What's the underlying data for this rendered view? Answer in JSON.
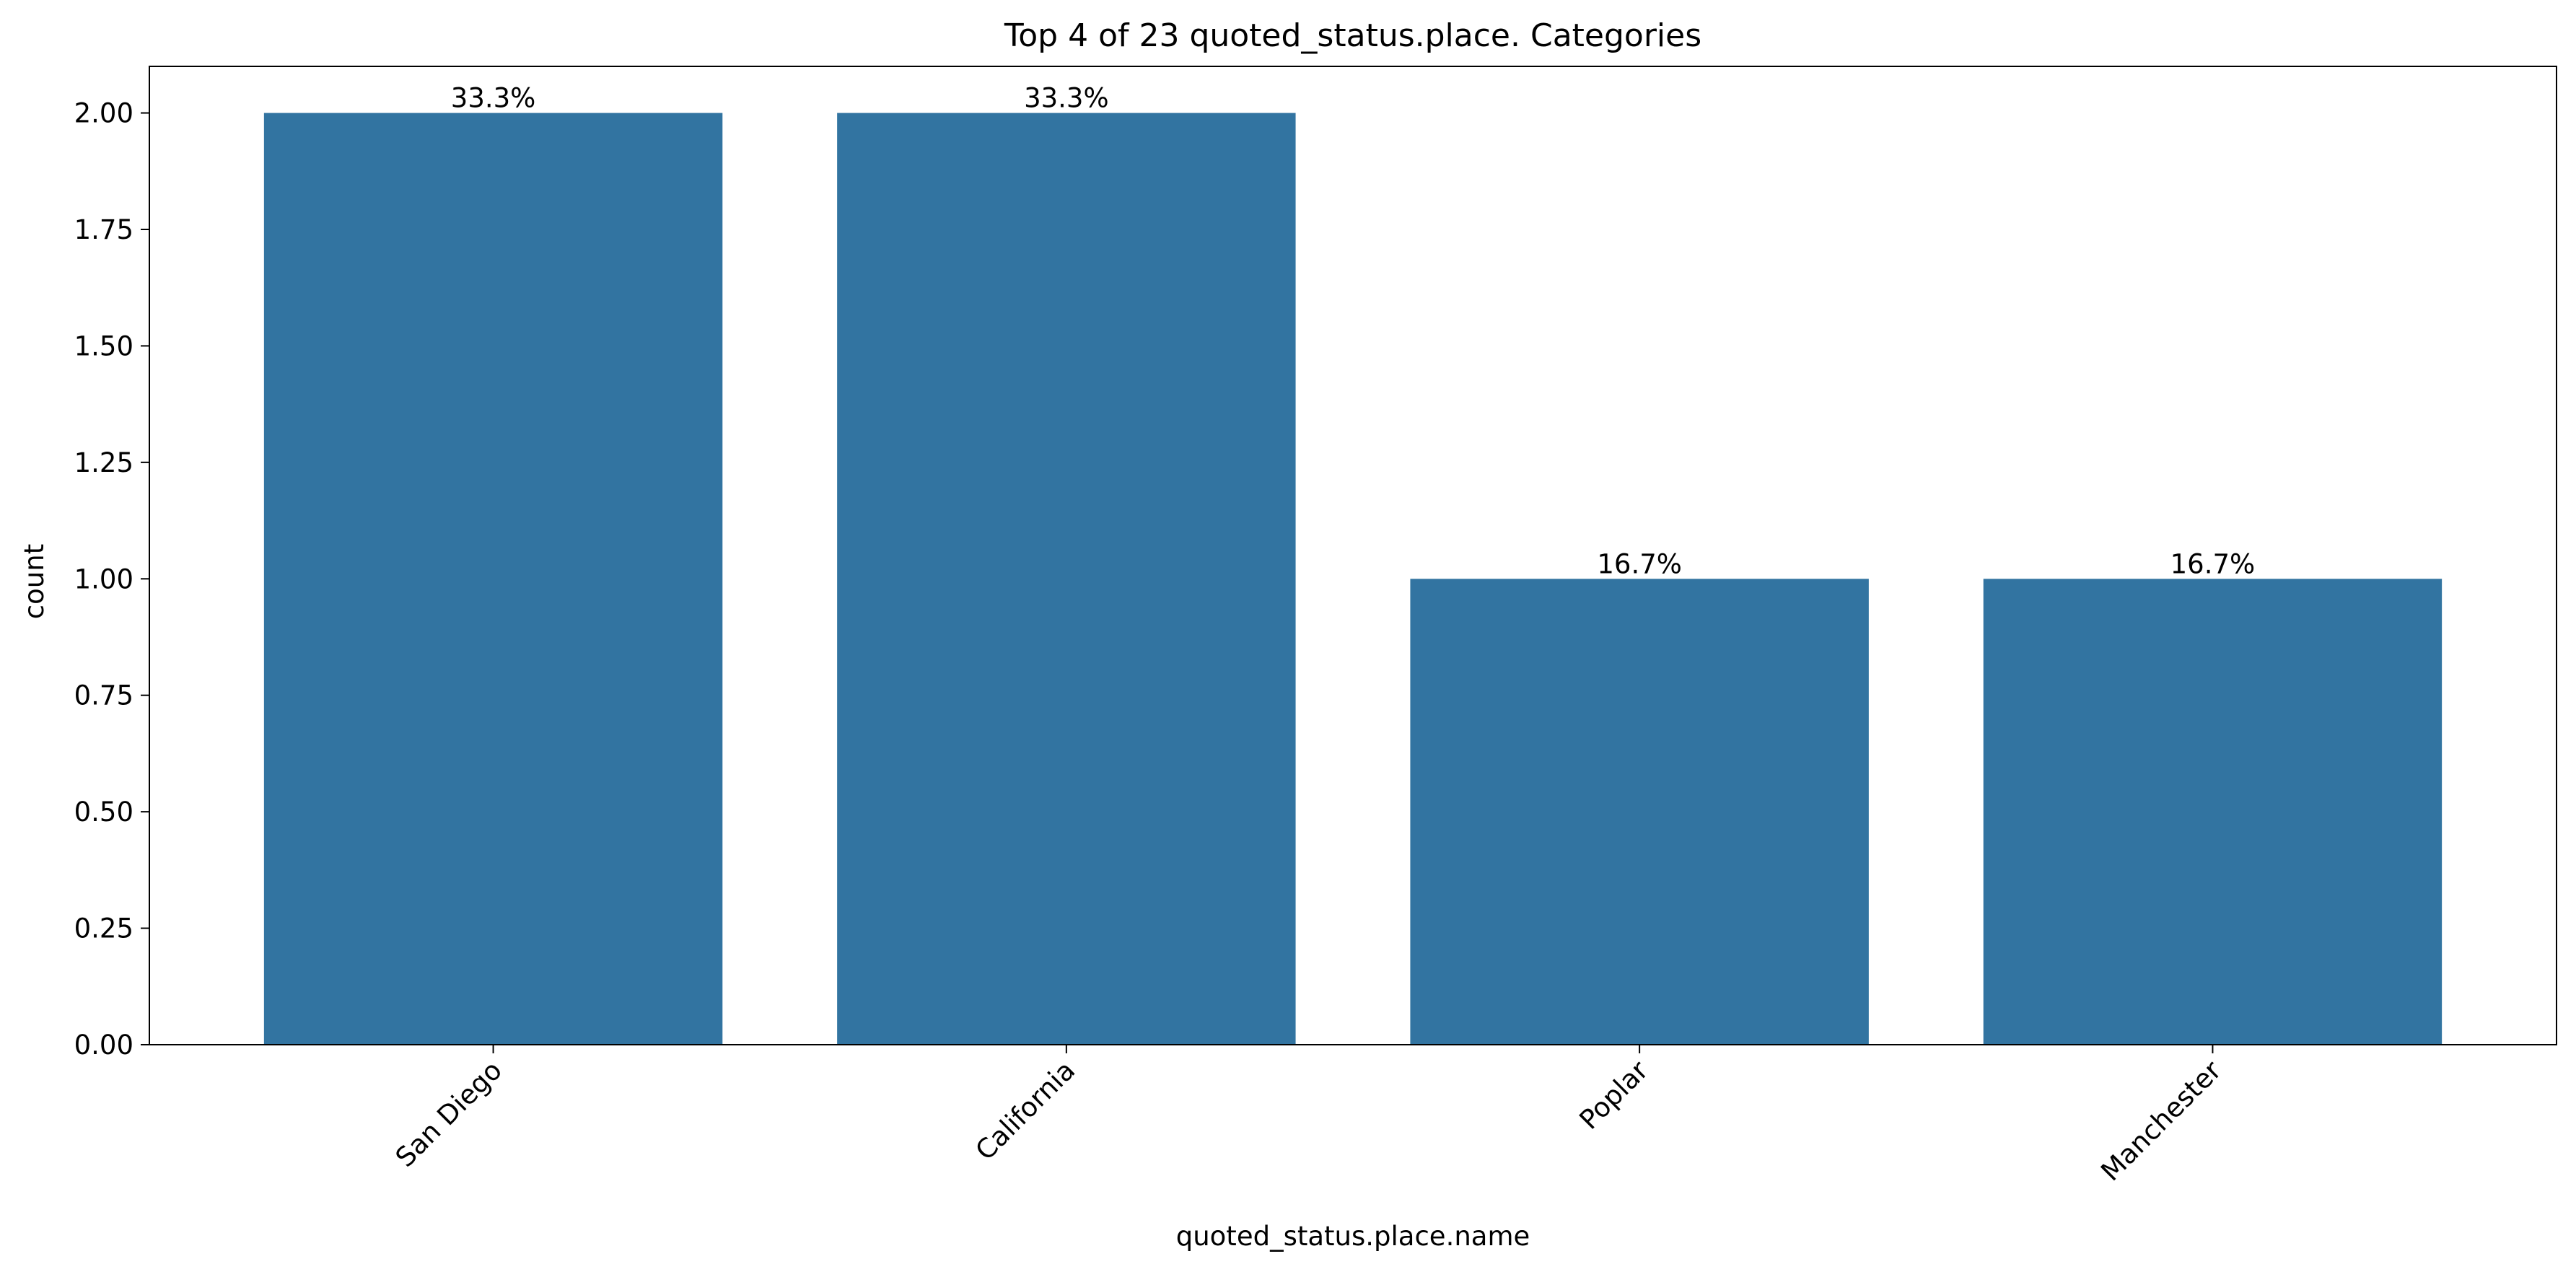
{
  "chart_data": {
    "type": "bar",
    "title": "Top 4 of 23 quoted_status.place. Categories",
    "xlabel": "quoted_status.place.name",
    "ylabel": "count",
    "categories": [
      "San Diego",
      "California",
      "Poplar",
      "Manchester"
    ],
    "values": [
      2,
      2,
      1,
      1
    ],
    "data_labels": [
      "33.3%",
      "33.3%",
      "16.7%",
      "16.7%"
    ],
    "ylim": [
      0,
      2.1
    ],
    "yticks": [
      0.0,
      0.25,
      0.5,
      0.75,
      1.0,
      1.25,
      1.5,
      1.75,
      2.0
    ],
    "ytick_labels": [
      "0.00",
      "0.25",
      "0.50",
      "0.75",
      "1.00",
      "1.25",
      "1.50",
      "1.75",
      "2.00"
    ],
    "xtick_rotation_deg": 45,
    "grid": false,
    "legend": "none",
    "colors": {
      "bar": "#3274a1",
      "axes": "#000000",
      "background": "#ffffff"
    }
  }
}
